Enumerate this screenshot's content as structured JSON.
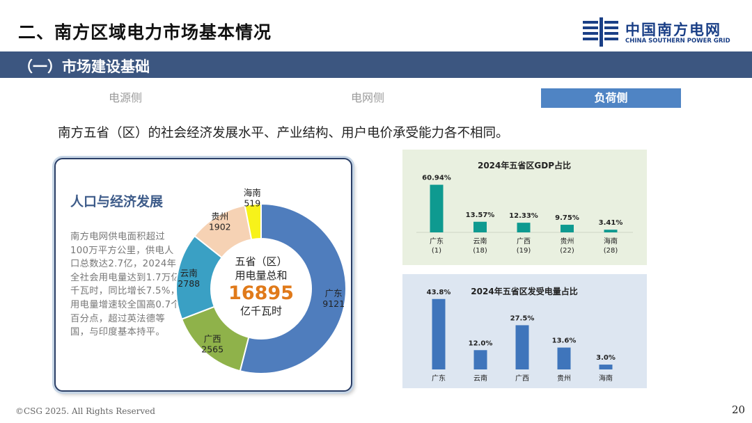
{
  "header": {
    "title": "二、南方区域电力市场基本情况",
    "logo_cn": "中国南方电网",
    "logo_en": "CHINA SOUTHERN POWER GRID"
  },
  "section": {
    "title": "（一）市场建设基础"
  },
  "tabs": [
    {
      "label": "电源侧",
      "active": false
    },
    {
      "label": "电网侧",
      "active": false
    },
    {
      "label": "负荷侧",
      "active": true
    }
  ],
  "tagline": "南方五省（区）的社会经济发展水平、产业结构、用户电价承受能力各不相同。",
  "population_panel": {
    "title": "人口与经济发展",
    "body": "南方电网供电面积超过100万平方公里，供电人口总数达2.7亿，2024年全社会用电量达到1.7万亿千瓦时，同比增长7.5%，用电量增速较全国高0.7个百分点，超过英法德等国，与印度基本持平。",
    "center_line1": "五省（区）",
    "center_line2": "用电量总和",
    "center_value": "16895",
    "center_unit": "亿千瓦时"
  },
  "colors": {
    "accent_blue": "#3c5680",
    "tab_active": "#4f84c4",
    "gdp_bar": "#0e9a90",
    "elec_bar": "#3f75bb",
    "highlight_orange": "#e07a1a"
  },
  "chart_data": [
    {
      "type": "pie",
      "donut": true,
      "categories": [
        "广东",
        "广西",
        "云南",
        "贵州",
        "海南"
      ],
      "values": [
        9121,
        2565,
        2788,
        1902,
        519
      ],
      "colors": [
        "#4f7dbd",
        "#8fb24a",
        "#3aa0c4",
        "#f6d2b4",
        "#f7f21a"
      ],
      "title": ""
    },
    {
      "type": "bar",
      "title": "2024年五省区GDP占比",
      "categories": [
        "广东",
        "云南",
        "广西",
        "贵州",
        "海南"
      ],
      "ranks": [
        "(1)",
        "(18)",
        "(19)",
        "(22)",
        "(28)"
      ],
      "values": [
        60.94,
        13.57,
        12.33,
        9.75,
        3.41
      ],
      "value_labels": [
        "60.94%",
        "13.57%",
        "12.33%",
        "9.75%",
        "3.41%"
      ],
      "ylim": [
        0,
        65
      ]
    },
    {
      "type": "bar",
      "title": "2024年五省区发受电量占比",
      "categories": [
        "广东",
        "云南",
        "广西",
        "贵州",
        "海南"
      ],
      "values": [
        43.8,
        12.0,
        27.5,
        13.6,
        3.0
      ],
      "value_labels": [
        "43.8%",
        "12.0%",
        "27.5%",
        "13.6%",
        "3.0%"
      ],
      "ylim": [
        0,
        45
      ]
    }
  ],
  "footer": {
    "copyright": "©CSG 2025. All Rights Reserved",
    "page_number": "20"
  }
}
